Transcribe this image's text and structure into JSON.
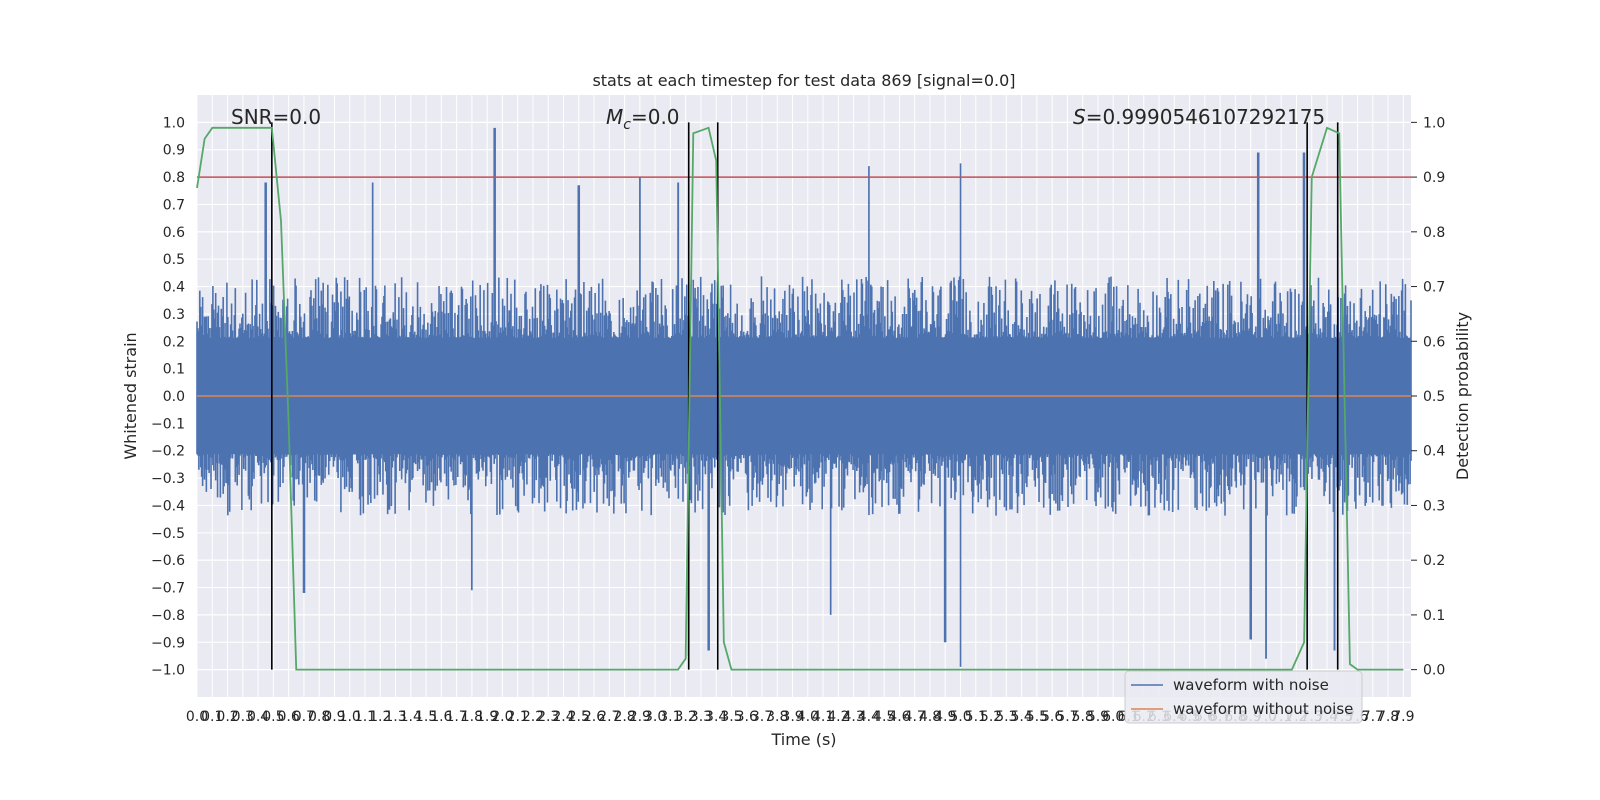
{
  "chart_data": {
    "type": "line",
    "title": "stats at each timestep for test data 869 [signal=0.0]",
    "xlabel": "Time (s)",
    "ylabel": "Whitened strain",
    "y2label": "Detection probability",
    "xlim": [
      0.0,
      7.95
    ],
    "ylim": [
      -1.1,
      1.1
    ],
    "y2lim": [
      -0.05,
      1.05
    ],
    "x_ticks": [
      "0.0",
      "0.1",
      "0.2",
      "0.3",
      "0.4",
      "0.5",
      "0.6",
      "0.7",
      "0.8",
      "0.9",
      "1.0",
      "1.1",
      "1.2",
      "1.3",
      "1.4",
      "1.5",
      "1.6",
      "1.7",
      "1.8",
      "1.9",
      "2.0",
      "2.1",
      "2.2",
      "2.3",
      "2.4",
      "2.5",
      "2.6",
      "2.7",
      "2.8",
      "2.9",
      "3.0",
      "3.1",
      "3.2",
      "3.3",
      "3.4",
      "3.5",
      "3.6",
      "3.7",
      "3.8",
      "3.9",
      "4.0",
      "4.1",
      "4.2",
      "4.3",
      "4.4",
      "4.5",
      "4.6",
      "4.7",
      "4.8",
      "4.9",
      "5.0",
      "5.1",
      "5.2",
      "5.3",
      "5.4",
      "5.5",
      "5.6",
      "5.7",
      "5.8",
      "5.9",
      "6.0",
      "6.1",
      "6.2",
      "6.3",
      "6.4",
      "6.5",
      "6.6",
      "6.7",
      "6.8",
      "6.9",
      "7.0",
      "7.1",
      "7.2",
      "7.3",
      "7.4",
      "7.5",
      "7.6",
      "7.7",
      "7.8",
      "7.9"
    ],
    "y_ticks": [
      "−1.0",
      "−0.9",
      "−0.8",
      "−0.7",
      "−0.6",
      "−0.5",
      "−0.4",
      "−0.3",
      "−0.2",
      "−0.1",
      "0.0",
      "0.1",
      "0.2",
      "0.3",
      "0.4",
      "0.5",
      "0.6",
      "0.7",
      "0.8",
      "0.9",
      "1.0"
    ],
    "y2_ticks": [
      "0.0",
      "0.1",
      "0.2",
      "0.3",
      "0.4",
      "0.5",
      "0.6",
      "0.7",
      "0.8",
      "0.9",
      "1.0"
    ],
    "annotations": {
      "snr": "SNR=0.0",
      "mc_symbol": "M",
      "mc_sub": "c",
      "mc_value": "=0.0",
      "s_symbol": "S",
      "s_value": "=0.9990546107292175"
    },
    "threshold_line": {
      "axis": "y2",
      "value": 0.9,
      "color": "#c44e52"
    },
    "vertical_lines_x": [
      0.49,
      3.22,
      3.41,
      7.27,
      7.47
    ],
    "series": [
      {
        "name": "waveform with noise",
        "color": "#4c72b0",
        "axis": "y",
        "envelope_upper_typical": 0.25,
        "envelope_lower_typical": -0.25,
        "peaks": [
          [
            0.45,
            0.78
          ],
          [
            1.15,
            0.78
          ],
          [
            1.95,
            0.98
          ],
          [
            2.5,
            0.77
          ],
          [
            2.9,
            0.8
          ],
          [
            3.15,
            0.78
          ],
          [
            4.4,
            0.84
          ],
          [
            5.0,
            0.85
          ],
          [
            6.95,
            0.89
          ],
          [
            7.25,
            0.89
          ]
        ],
        "troughs": [
          [
            0.7,
            -0.72
          ],
          [
            1.8,
            -0.71
          ],
          [
            3.22,
            -0.95
          ],
          [
            3.35,
            -0.93
          ],
          [
            4.15,
            -0.8
          ],
          [
            4.9,
            -0.9
          ],
          [
            5.0,
            -0.99
          ],
          [
            6.9,
            -0.89
          ],
          [
            7.0,
            -0.96
          ],
          [
            7.45,
            -0.93
          ]
        ]
      },
      {
        "name": "waveform without noise",
        "color": "#dd8452",
        "axis": "y",
        "x": [
          0.0,
          7.95
        ],
        "y": [
          0.0,
          0.0
        ]
      },
      {
        "name": "detection probability",
        "color": "#55a868",
        "axis": "y2",
        "x": [
          0.0,
          0.05,
          0.1,
          0.2,
          0.3,
          0.4,
          0.49,
          0.55,
          0.6,
          0.65,
          0.7,
          1.0,
          2.0,
          3.0,
          3.15,
          3.2,
          3.25,
          3.35,
          3.4,
          3.45,
          3.5,
          3.55,
          4.0,
          5.0,
          6.0,
          7.0,
          7.17,
          7.25,
          7.3,
          7.4,
          7.48,
          7.55,
          7.6,
          7.7,
          7.9
        ],
        "y": [
          0.88,
          0.97,
          0.99,
          0.99,
          0.99,
          0.99,
          0.99,
          0.82,
          0.45,
          0.0,
          0.0,
          0.0,
          0.0,
          0.0,
          0.0,
          0.02,
          0.98,
          0.99,
          0.93,
          0.05,
          0.0,
          0.0,
          0.0,
          0.0,
          0.0,
          0.0,
          0.0,
          0.05,
          0.9,
          0.99,
          0.98,
          0.01,
          0.0,
          0.0,
          0.0
        ]
      }
    ],
    "legend": {
      "position": "lower-right",
      "entries": [
        "waveform with noise",
        "waveform without noise"
      ]
    },
    "grid": true,
    "background": "#eaeaf2"
  }
}
